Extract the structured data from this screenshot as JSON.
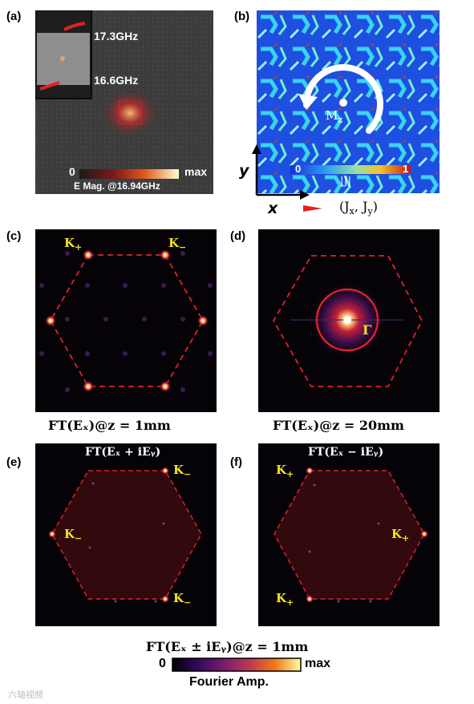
{
  "panels": {
    "a": {
      "label": "(a)",
      "freq_top": "17.3GHz",
      "freq_bottom": "16.6GHz",
      "scale_min": "0",
      "scale_max": "max",
      "scale_title": "E Mag. @16.94GHz"
    },
    "b": {
      "label": "(b)",
      "scale_min": "0",
      "scale_max": "1",
      "scale_title": "|J|",
      "moment_label": "M",
      "moment_sub": "z",
      "axis_y": "y",
      "axis_x": "x",
      "arrow_legend": "(J",
      "arrow_legend_x": "x",
      "arrow_legend_mid": ", J",
      "arrow_legend_y": "y",
      "arrow_legend_end": ")"
    },
    "c": {
      "label": "(c)",
      "k_left": "K",
      "k_left_sub": "+",
      "k_right": "K",
      "k_right_sub": "−",
      "caption": "FT(Eₓ)@z = 1mm"
    },
    "d": {
      "label": "(d)",
      "gamma": "Γ",
      "caption": "FT(Eₓ)@z = 20mm"
    },
    "e": {
      "label": "(e)",
      "title": "FT(Eₓ + iEᵧ)",
      "k_sym": "K",
      "k_sub": "−"
    },
    "f": {
      "label": "(f)",
      "title": "FT(Eₓ − iEᵧ)",
      "k_sym": "K",
      "k_sub": "+"
    }
  },
  "bottom": {
    "caption": "FT(Eₓ ± iEᵧ)@z = 1mm",
    "scale_min": "0",
    "scale_max": "max",
    "scale_title": "Fourier Amp."
  },
  "watermark": "六轴视频",
  "colors": {
    "k_label": "#f3e21c",
    "hexagon": "#e0202a",
    "panel_bg": "#050308"
  }
}
